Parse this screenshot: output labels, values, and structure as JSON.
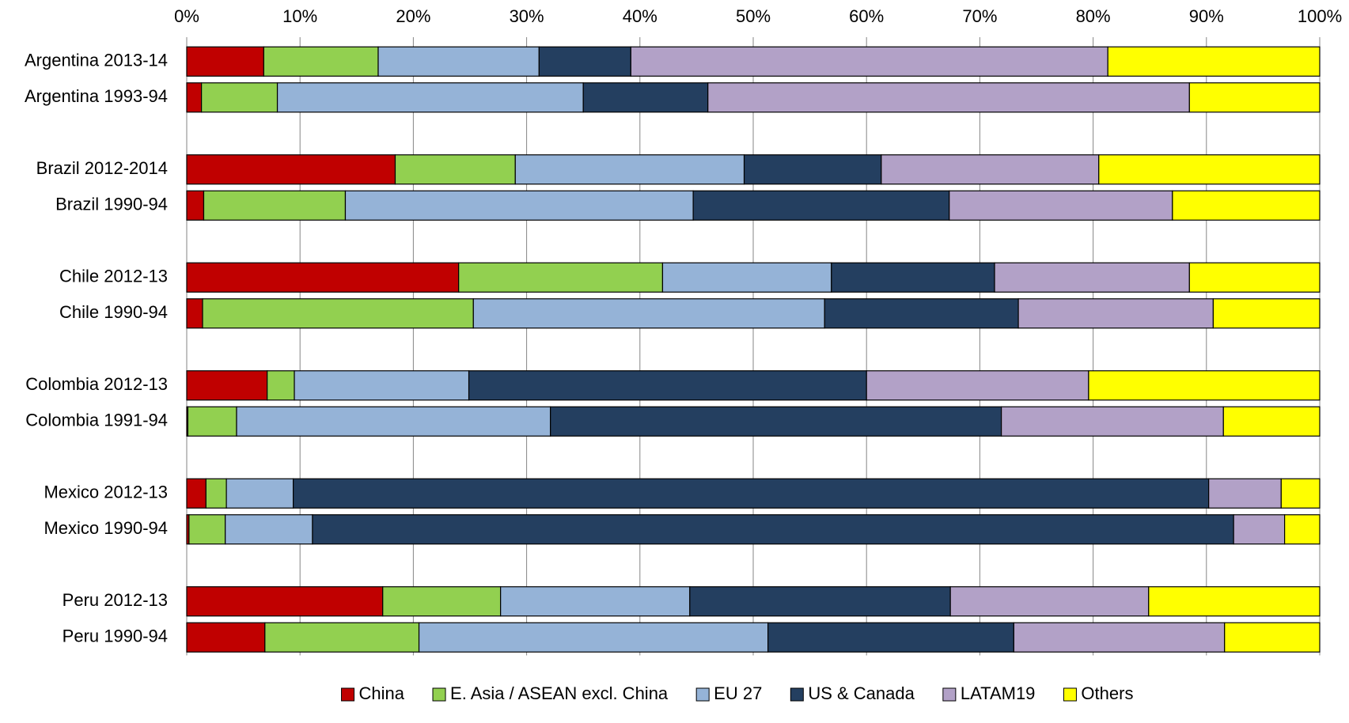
{
  "chart_data": {
    "type": "stacked-bar-horizontal",
    "categories": [
      "Argentina 2013-14",
      "Argentina 1993-94",
      null,
      "Brazil 2012-2014",
      "Brazil 1990-94",
      null,
      "Chile 2012-13",
      "Chile 1990-94",
      null,
      "Colombia 2012-13",
      "Colombia 1991-94",
      null,
      "Mexico 2012-13",
      "Mexico 1990-94",
      null,
      "Peru 2012-13",
      "Peru 1990-94"
    ],
    "series": [
      {
        "name": "China",
        "color": "#c00000",
        "values": [
          6.8,
          1.3,
          null,
          18.4,
          1.5,
          null,
          24.0,
          1.4,
          null,
          7.1,
          0.1,
          null,
          1.7,
          0.2,
          null,
          17.3,
          6.9
        ]
      },
      {
        "name": "E. Asia / ASEAN excl. China",
        "color": "#92d050",
        "values": [
          10.1,
          6.7,
          null,
          10.6,
          12.5,
          null,
          18.0,
          23.9,
          null,
          2.4,
          4.3,
          null,
          1.8,
          3.2,
          null,
          10.4,
          13.6
        ]
      },
      {
        "name": "EU 27",
        "color": "#95b3d7",
        "values": [
          14.2,
          27.0,
          null,
          20.2,
          30.7,
          null,
          14.9,
          31.0,
          null,
          15.4,
          27.7,
          null,
          5.9,
          7.7,
          null,
          16.7,
          30.8
        ]
      },
      {
        "name": "US & Canada",
        "color": "#243f60",
        "values": [
          8.1,
          11.0,
          null,
          12.1,
          22.6,
          null,
          14.4,
          17.1,
          null,
          35.1,
          39.8,
          null,
          80.8,
          81.3,
          null,
          23.0,
          21.7
        ]
      },
      {
        "name": "LATAM19",
        "color": "#b2a1c7",
        "values": [
          42.1,
          42.5,
          null,
          19.2,
          19.7,
          null,
          17.2,
          17.2,
          null,
          19.6,
          19.6,
          null,
          6.4,
          4.5,
          null,
          17.5,
          18.6
        ]
      },
      {
        "name": "Others",
        "color": "#ffff00",
        "values": [
          18.7,
          11.5,
          null,
          19.5,
          13.0,
          null,
          11.5,
          9.4,
          null,
          20.4,
          8.5,
          null,
          3.4,
          3.1,
          null,
          15.1,
          8.4
        ]
      }
    ],
    "xlim": [
      0,
      100
    ],
    "xticks": [
      {
        "value": 0,
        "label": "0%"
      },
      {
        "value": 10,
        "label": "10%"
      },
      {
        "value": 20,
        "label": "20%"
      },
      {
        "value": 30,
        "label": "30%"
      },
      {
        "value": 40,
        "label": "40%"
      },
      {
        "value": 50,
        "label": "50%"
      },
      {
        "value": 60,
        "label": "60%"
      },
      {
        "value": 70,
        "label": "70%"
      },
      {
        "value": 80,
        "label": "80%"
      },
      {
        "value": 90,
        "label": "90%"
      },
      {
        "value": 100,
        "label": "100%"
      }
    ],
    "grid": true,
    "legend": "bottom"
  }
}
